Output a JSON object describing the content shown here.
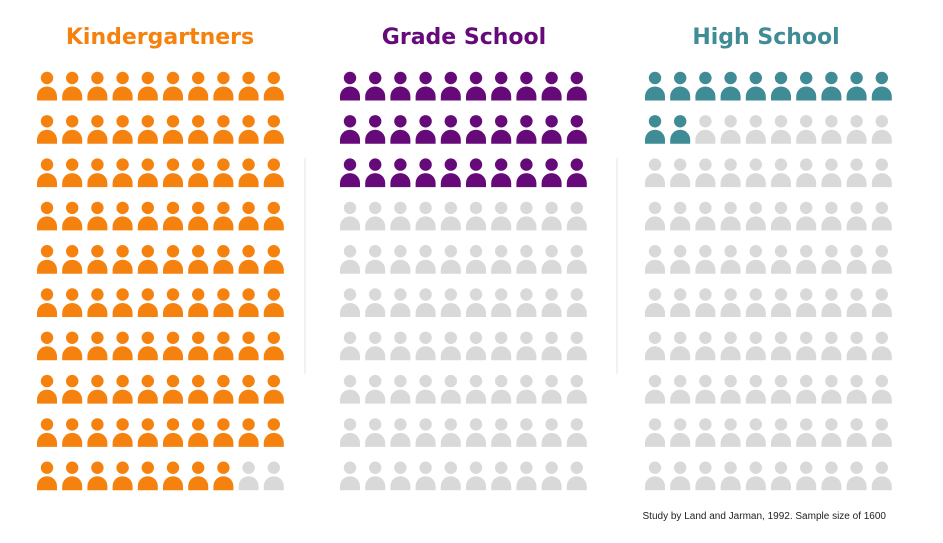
{
  "chart_data": {
    "type": "pictogram",
    "grid": {
      "rows": 10,
      "cols": 10,
      "total": 100
    },
    "inactive_color": "#d9d9d9",
    "panels": [
      {
        "title": "Kindergartners",
        "value": 98,
        "color": "#f5820f"
      },
      {
        "title": "Grade School",
        "value": 30,
        "color": "#660a7a"
      },
      {
        "title": "High School",
        "value": 12,
        "color": "#3f8b96"
      }
    ],
    "source": "Study by Land and Jarman, 1992. Sample size of 1600"
  }
}
